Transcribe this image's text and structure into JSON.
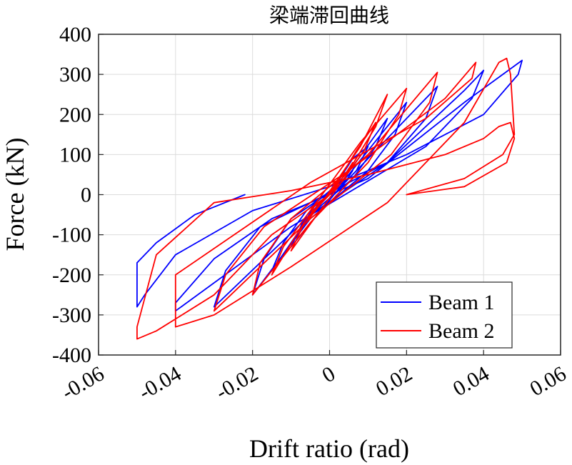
{
  "chart_data": {
    "type": "line",
    "title": "梁端滞回曲线",
    "xlabel": "Drift ratio (rad)",
    "ylabel": "Force (kN)",
    "xlim": [
      -0.06,
      0.06
    ],
    "ylim": [
      -400,
      400
    ],
    "grid": true,
    "legend_position": "bottom-right",
    "xticks": [
      -0.06,
      -0.04,
      -0.02,
      0,
      0.02,
      0.04,
      0.06
    ],
    "xtick_labels": [
      "-0.06",
      "-0.04",
      "-0.02",
      "0",
      "0.02",
      "0.04",
      "0.06"
    ],
    "yticks": [
      400,
      300,
      200,
      100,
      0,
      -100,
      -200,
      -300,
      -400
    ],
    "ytick_labels": [
      "400",
      "300",
      "200",
      "100",
      "0",
      "-100",
      "-200",
      "-300",
      "-400"
    ],
    "series": [
      {
        "name": "Beam 1",
        "color": "#0000ff",
        "x": [
          0,
          0.004,
          0.006,
          0.004,
          0,
          -0.004,
          -0.006,
          -0.004,
          0,
          0.006,
          0.01,
          0.007,
          0.002,
          -0.004,
          -0.01,
          -0.007,
          -0.002,
          0.006,
          0.015,
          0.012,
          0.006,
          -0.005,
          -0.015,
          -0.012,
          -0.006,
          0.005,
          0.02,
          0.017,
          0.01,
          -0.005,
          -0.02,
          -0.017,
          -0.01,
          0.005,
          0.028,
          0.025,
          0.015,
          -0.005,
          -0.03,
          -0.027,
          -0.018,
          -0.005,
          0.015,
          0.035,
          0.04,
          0.037,
          0.025,
          -0.01,
          -0.04,
          -0.04,
          -0.03,
          -0.015,
          0.01,
          0.035,
          0.05,
          0.049,
          0.04,
          0.02,
          0,
          -0.02,
          -0.04,
          -0.048,
          -0.05,
          -0.05,
          -0.045,
          -0.035,
          -0.022
        ],
        "y": [
          0,
          40,
          60,
          30,
          0,
          -40,
          -60,
          -30,
          0,
          90,
          120,
          60,
          10,
          -60,
          -130,
          -70,
          -15,
          70,
          190,
          120,
          40,
          -50,
          -190,
          -120,
          -40,
          50,
          230,
          150,
          60,
          -60,
          -250,
          -160,
          -60,
          40,
          270,
          190,
          80,
          -50,
          -280,
          -190,
          -80,
          -20,
          80,
          260,
          310,
          240,
          120,
          -80,
          -290,
          -270,
          -160,
          -60,
          40,
          230,
          335,
          300,
          200,
          100,
          20,
          -40,
          -150,
          -250,
          -280,
          -170,
          -120,
          -50,
          0
        ]
      },
      {
        "name": "Beam 2",
        "color": "#ff0000",
        "x": [
          0,
          0.004,
          0.006,
          0.004,
          0,
          -0.004,
          -0.006,
          -0.004,
          0,
          0.007,
          0.012,
          0.009,
          0.003,
          -0.004,
          -0.01,
          -0.007,
          -0.002,
          0.008,
          0.015,
          0.012,
          0.005,
          -0.006,
          -0.015,
          -0.012,
          -0.005,
          0.008,
          0.02,
          0.018,
          0.01,
          -0.005,
          -0.02,
          -0.018,
          -0.01,
          0.01,
          0.028,
          0.026,
          0.016,
          -0.005,
          -0.03,
          -0.027,
          -0.017,
          0.005,
          0.03,
          0.038,
          0.037,
          0.025,
          -0.005,
          -0.04,
          -0.04,
          -0.03,
          -0.01,
          0.015,
          0.035,
          0.044,
          0.046,
          0.047,
          0.048,
          0.045,
          0.035,
          0.02,
          0.02,
          0.035,
          0.046,
          0.048,
          0.047,
          0.044,
          0.04,
          0.03,
          0.01,
          -0.01,
          -0.03,
          -0.045,
          -0.05,
          -0.05,
          -0.045,
          -0.03,
          -0.015,
          0
        ],
        "y": [
          0,
          50,
          80,
          40,
          0,
          -40,
          -70,
          -30,
          0,
          110,
          180,
          110,
          30,
          -60,
          -140,
          -80,
          -20,
          120,
          250,
          170,
          60,
          -60,
          -200,
          -130,
          -40,
          130,
          265,
          200,
          80,
          -70,
          -250,
          -170,
          -60,
          100,
          305,
          230,
          100,
          -60,
          -290,
          -200,
          -80,
          60,
          240,
          330,
          290,
          190,
          30,
          -200,
          -330,
          -300,
          -180,
          -20,
          180,
          330,
          340,
          300,
          150,
          100,
          40,
          0,
          0,
          20,
          80,
          140,
          180,
          170,
          140,
          100,
          50,
          10,
          -20,
          -150,
          -330,
          -360,
          -340,
          -250,
          -100,
          0
        ]
      }
    ]
  }
}
